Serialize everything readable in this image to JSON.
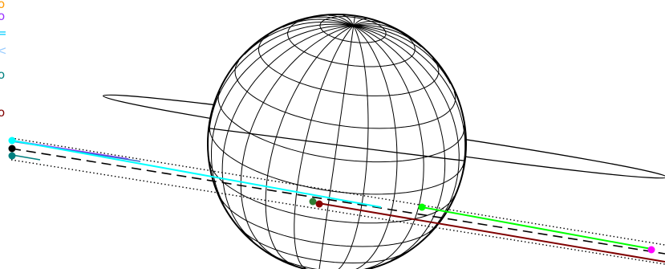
{
  "legend": [
    {
      "glyph": "o",
      "color": "#ff9900"
    },
    {
      "glyph": "o",
      "color": "#9933ff"
    },
    {
      "glyph": "=",
      "color": "#00ccff"
    },
    {
      "glyph": "<",
      "color": "#99ccff"
    },
    {
      "glyph": "o",
      "color": "#008080"
    },
    {
      "glyph": "o",
      "color": "#800000"
    }
  ],
  "colors": {
    "globe": "#000000",
    "ring": "#000000",
    "axis_dashed": "#000000",
    "guide_dotted": "#000000",
    "track_cyan": "#00ffff",
    "track_blue": "#3366cc",
    "track_purple": "#9933ff",
    "track_teal": "#008080",
    "track_green": "#00ff00",
    "track_maroon": "#800000",
    "point_cyan": "#00ffff",
    "point_black": "#000000",
    "point_teal": "#008080",
    "point_darkgreen": "#2e7d32",
    "point_maroon": "#8b0000",
    "point_green": "#00ff00",
    "point_magenta": "#ff00ff"
  }
}
